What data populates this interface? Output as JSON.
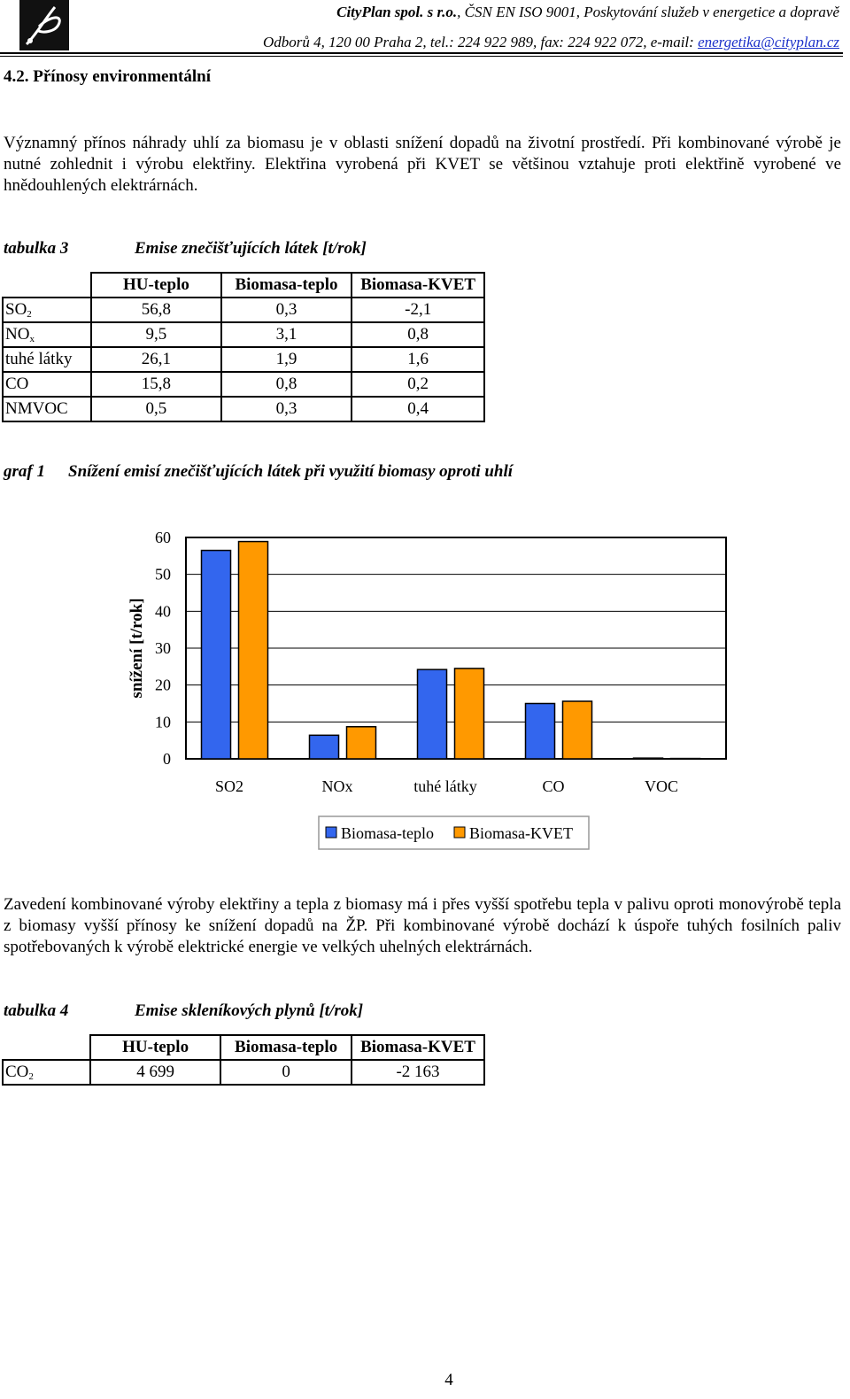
{
  "header": {
    "company": "CityPlan spol. s r.o.",
    "line1_rest": ", ČSN EN ISO 9001, Poskytování služeb v energetice a dopravě",
    "line2": "Odborů 4, 120 00 Praha 2, tel.: 224 922 989, fax: 224 922 072, e-mail: ",
    "email": "energetika@cityplan.cz"
  },
  "section_title": "4.2. Přínosy environmentální",
  "paragraph1": "Významný přínos náhrady uhlí za biomasu je v oblasti snížení dopadů na životní prostředí. Při kombinované výrobě je nutné zohlednit i výrobu elektřiny. Elektřina vyrobená při KVET se většinou vztahuje proti elektřině vyrobené ve hnědouhlených elektrárnách.",
  "table3": {
    "label": "tabulka 3",
    "title": "Emise znečišťujících látek [t/rok]",
    "columns": [
      "HU-teplo",
      "Biomasa-teplo",
      "Biomasa-KVET"
    ],
    "rows": [
      {
        "name": "SO",
        "sub": "2",
        "values": [
          "56,8",
          "0,3",
          "-2,1"
        ]
      },
      {
        "name": "NO",
        "sub": "x",
        "values": [
          "9,5",
          "3,1",
          "0,8"
        ]
      },
      {
        "name": "tuhé látky",
        "sub": "",
        "values": [
          "26,1",
          "1,9",
          "1,6"
        ]
      },
      {
        "name": "CO",
        "sub": "",
        "values": [
          "15,8",
          "0,8",
          "0,2"
        ]
      },
      {
        "name": "NMVOC",
        "sub": "",
        "values": [
          "0,5",
          "0,3",
          "0,4"
        ]
      }
    ]
  },
  "graph1": {
    "label": "graf 1",
    "title": "Snížení emisí znečišťujících látek při využití biomasy oproti uhlí"
  },
  "chart_data": {
    "type": "bar",
    "categories": [
      "SO2",
      "NOx",
      "tuhé látky",
      "CO",
      "VOC"
    ],
    "series": [
      {
        "name": "Biomasa-teplo",
        "color": "#3366ee",
        "values": [
          56.5,
          6.4,
          24.2,
          15.0,
          0.2
        ]
      },
      {
        "name": "Biomasa-KVET",
        "color": "#ff9900",
        "values": [
          58.9,
          8.7,
          24.5,
          15.6,
          0.1
        ]
      }
    ],
    "ylabel": "snížení [t/rok]",
    "ylim": [
      0,
      60
    ],
    "yticks": [
      "0",
      "10",
      "20",
      "30",
      "40",
      "50",
      "60"
    ],
    "grid": true,
    "legend": "bottom"
  },
  "paragraph2": "Zavedení kombinované výroby elektřiny a tepla z biomasy má i přes vyšší spotřebu tepla v palivu oproti monovýrobě tepla z biomasy vyšší přínosy ke snížení dopadů na ŽP.  Při kombinované výrobě dochází k úspoře tuhých fosilních paliv spotřebovaných k výrobě elektrické energie ve velkých uhelných elektrárnách.",
  "table4": {
    "label": "tabulka 4",
    "title": "Emise skleníkových plynů [t/rok]",
    "columns": [
      "HU-teplo",
      "Biomasa-teplo",
      "Biomasa-KVET"
    ],
    "rows": [
      {
        "name": "CO",
        "sub": "2",
        "values": [
          "4 699",
          "0",
          "-2 163"
        ]
      }
    ]
  },
  "page_number": "4"
}
